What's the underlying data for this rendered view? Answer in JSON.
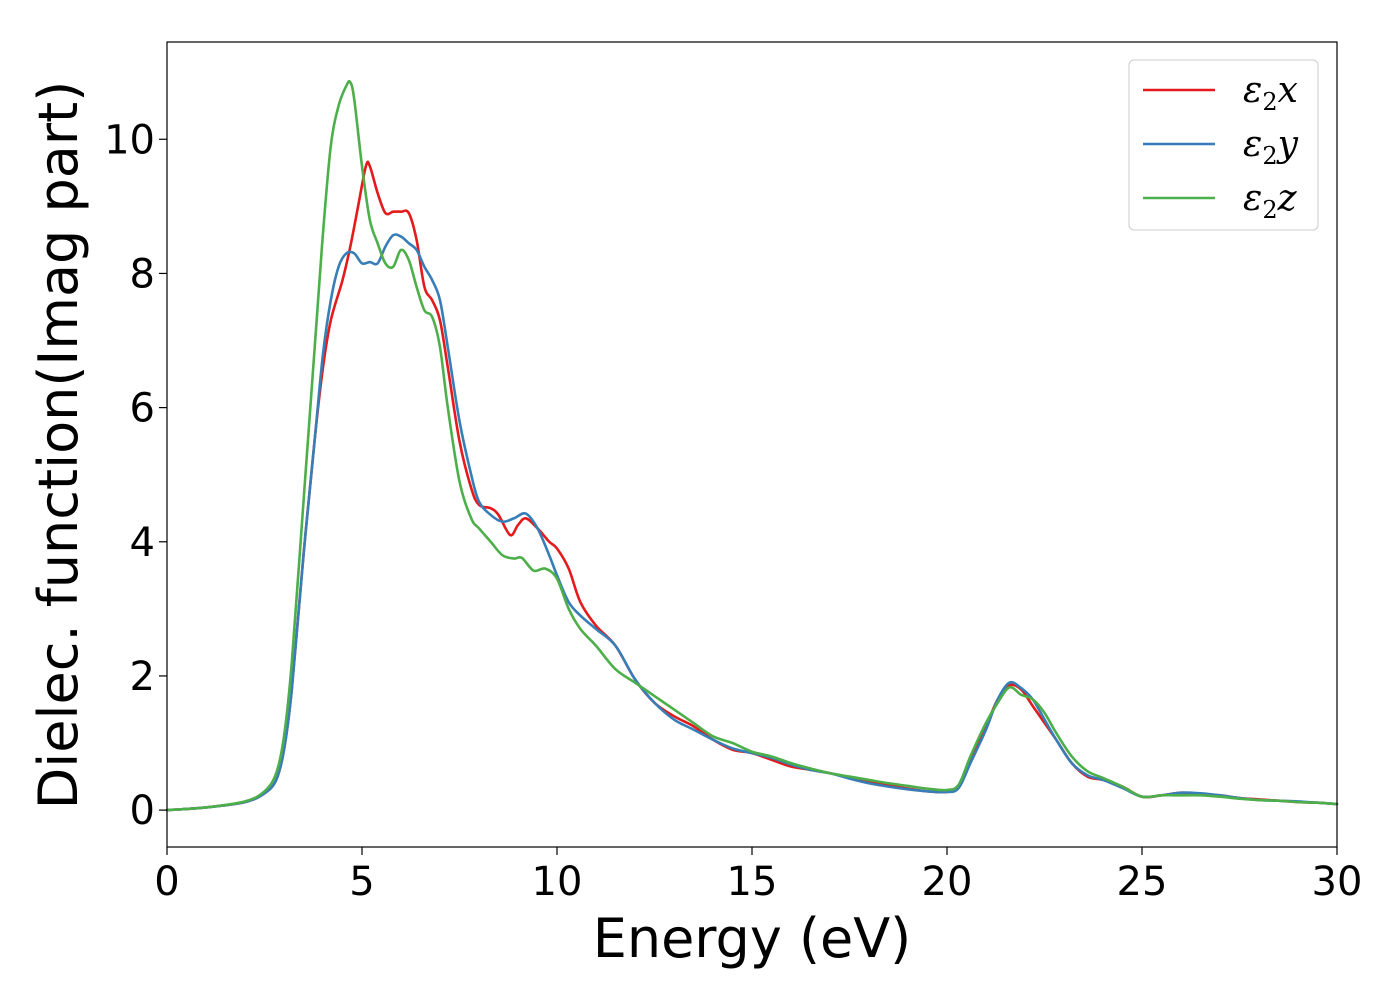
{
  "chart_data": {
    "type": "line",
    "title": "",
    "xlabel": "Energy (eV)",
    "ylabel": "Dielec. function(Imag part)",
    "xlim": [
      0,
      30
    ],
    "ylim": [
      -0.55,
      11.45
    ],
    "xticks": [
      0,
      5,
      10,
      15,
      20,
      25,
      30
    ],
    "yticks": [
      0,
      2,
      4,
      6,
      8,
      10
    ],
    "grid": false,
    "legend_position": "top-right",
    "series": [
      {
        "name": "ε2x",
        "legend_base": "ε",
        "legend_sub": "2",
        "legend_suffix": "x",
        "color": "#e41a1c",
        "points": [
          [
            0,
            0.0
          ],
          [
            1,
            0.04
          ],
          [
            2,
            0.12
          ],
          [
            2.5,
            0.25
          ],
          [
            2.8,
            0.45
          ],
          [
            3.0,
            0.9
          ],
          [
            3.2,
            1.8
          ],
          [
            3.5,
            3.8
          ],
          [
            3.8,
            5.6
          ],
          [
            4.0,
            6.6
          ],
          [
            4.2,
            7.3
          ],
          [
            4.5,
            7.9
          ],
          [
            4.7,
            8.4
          ],
          [
            4.9,
            9.0
          ],
          [
            5.1,
            9.6
          ],
          [
            5.2,
            9.6
          ],
          [
            5.4,
            9.2
          ],
          [
            5.6,
            8.9
          ],
          [
            5.8,
            8.92
          ],
          [
            6.0,
            8.92
          ],
          [
            6.2,
            8.9
          ],
          [
            6.4,
            8.5
          ],
          [
            6.6,
            7.8
          ],
          [
            6.8,
            7.6
          ],
          [
            7.0,
            7.3
          ],
          [
            7.2,
            6.6
          ],
          [
            7.5,
            5.5
          ],
          [
            7.8,
            4.8
          ],
          [
            8.0,
            4.55
          ],
          [
            8.3,
            4.5
          ],
          [
            8.5,
            4.4
          ],
          [
            8.8,
            4.1
          ],
          [
            9.0,
            4.25
          ],
          [
            9.2,
            4.35
          ],
          [
            9.5,
            4.2
          ],
          [
            9.8,
            4.0
          ],
          [
            10.0,
            3.9
          ],
          [
            10.3,
            3.6
          ],
          [
            10.6,
            3.1
          ],
          [
            11.0,
            2.75
          ],
          [
            11.5,
            2.45
          ],
          [
            12.0,
            1.95
          ],
          [
            12.5,
            1.6
          ],
          [
            13.0,
            1.4
          ],
          [
            13.5,
            1.25
          ],
          [
            14.0,
            1.05
          ],
          [
            14.5,
            0.9
          ],
          [
            15.0,
            0.85
          ],
          [
            15.5,
            0.75
          ],
          [
            16.0,
            0.65
          ],
          [
            16.5,
            0.6
          ],
          [
            17.0,
            0.55
          ],
          [
            17.5,
            0.48
          ],
          [
            18.0,
            0.42
          ],
          [
            18.5,
            0.37
          ],
          [
            19.0,
            0.32
          ],
          [
            19.5,
            0.28
          ],
          [
            20.0,
            0.27
          ],
          [
            20.3,
            0.35
          ],
          [
            20.6,
            0.75
          ],
          [
            21.0,
            1.25
          ],
          [
            21.3,
            1.65
          ],
          [
            21.6,
            1.86
          ],
          [
            21.9,
            1.8
          ],
          [
            22.2,
            1.55
          ],
          [
            22.5,
            1.3
          ],
          [
            22.8,
            1.05
          ],
          [
            23.2,
            0.7
          ],
          [
            23.6,
            0.5
          ],
          [
            24.0,
            0.45
          ],
          [
            24.5,
            0.35
          ],
          [
            25.0,
            0.2
          ],
          [
            25.5,
            0.22
          ],
          [
            26.0,
            0.26
          ],
          [
            26.5,
            0.24
          ],
          [
            27.0,
            0.22
          ],
          [
            27.5,
            0.18
          ],
          [
            28.0,
            0.16
          ],
          [
            28.5,
            0.14
          ],
          [
            29.0,
            0.12
          ],
          [
            29.5,
            0.11
          ],
          [
            30.0,
            0.09
          ]
        ]
      },
      {
        "name": "ε2y",
        "legend_base": "ε",
        "legend_sub": "2",
        "legend_suffix": "y",
        "color": "#377eb8",
        "points": [
          [
            0,
            0.0
          ],
          [
            1,
            0.04
          ],
          [
            2,
            0.12
          ],
          [
            2.5,
            0.25
          ],
          [
            2.8,
            0.45
          ],
          [
            3.0,
            0.9
          ],
          [
            3.2,
            1.8
          ],
          [
            3.5,
            3.8
          ],
          [
            3.8,
            5.6
          ],
          [
            4.0,
            6.8
          ],
          [
            4.2,
            7.6
          ],
          [
            4.4,
            8.1
          ],
          [
            4.6,
            8.3
          ],
          [
            4.8,
            8.3
          ],
          [
            5.0,
            8.15
          ],
          [
            5.2,
            8.17
          ],
          [
            5.4,
            8.15
          ],
          [
            5.6,
            8.4
          ],
          [
            5.8,
            8.57
          ],
          [
            6.0,
            8.55
          ],
          [
            6.2,
            8.45
          ],
          [
            6.4,
            8.35
          ],
          [
            6.6,
            8.1
          ],
          [
            6.8,
            7.9
          ],
          [
            7.0,
            7.6
          ],
          [
            7.2,
            6.9
          ],
          [
            7.5,
            5.8
          ],
          [
            7.8,
            5.0
          ],
          [
            8.0,
            4.6
          ],
          [
            8.3,
            4.4
          ],
          [
            8.6,
            4.3
          ],
          [
            8.9,
            4.35
          ],
          [
            9.2,
            4.42
          ],
          [
            9.5,
            4.2
          ],
          [
            9.8,
            3.8
          ],
          [
            10.0,
            3.5
          ],
          [
            10.3,
            3.1
          ],
          [
            10.6,
            2.9
          ],
          [
            11.0,
            2.7
          ],
          [
            11.5,
            2.45
          ],
          [
            12.0,
            1.95
          ],
          [
            12.5,
            1.6
          ],
          [
            13.0,
            1.35
          ],
          [
            13.5,
            1.2
          ],
          [
            14.0,
            1.05
          ],
          [
            14.5,
            0.92
          ],
          [
            15.0,
            0.85
          ],
          [
            15.5,
            0.78
          ],
          [
            16.0,
            0.68
          ],
          [
            16.5,
            0.6
          ],
          [
            17.0,
            0.55
          ],
          [
            17.5,
            0.47
          ],
          [
            18.0,
            0.4
          ],
          [
            18.5,
            0.35
          ],
          [
            19.0,
            0.31
          ],
          [
            19.5,
            0.28
          ],
          [
            20.0,
            0.27
          ],
          [
            20.3,
            0.33
          ],
          [
            20.6,
            0.7
          ],
          [
            21.0,
            1.2
          ],
          [
            21.3,
            1.65
          ],
          [
            21.6,
            1.9
          ],
          [
            21.9,
            1.82
          ],
          [
            22.2,
            1.65
          ],
          [
            22.5,
            1.35
          ],
          [
            22.8,
            1.05
          ],
          [
            23.2,
            0.7
          ],
          [
            23.6,
            0.52
          ],
          [
            24.0,
            0.45
          ],
          [
            24.5,
            0.33
          ],
          [
            25.0,
            0.2
          ],
          [
            25.5,
            0.22
          ],
          [
            26.0,
            0.26
          ],
          [
            26.5,
            0.25
          ],
          [
            27.0,
            0.22
          ],
          [
            27.5,
            0.18
          ],
          [
            28.0,
            0.15
          ],
          [
            28.5,
            0.14
          ],
          [
            29.0,
            0.13
          ],
          [
            29.5,
            0.11
          ],
          [
            30.0,
            0.09
          ]
        ]
      },
      {
        "name": "ε2z",
        "legend_base": "ε",
        "legend_sub": "2",
        "legend_suffix": "z",
        "color": "#4daf4a",
        "points": [
          [
            0,
            0.0
          ],
          [
            1,
            0.04
          ],
          [
            2,
            0.13
          ],
          [
            2.5,
            0.28
          ],
          [
            2.8,
            0.55
          ],
          [
            3.0,
            1.1
          ],
          [
            3.2,
            2.2
          ],
          [
            3.5,
            4.6
          ],
          [
            3.8,
            7.0
          ],
          [
            4.0,
            8.6
          ],
          [
            4.2,
            9.9
          ],
          [
            4.4,
            10.5
          ],
          [
            4.6,
            10.8
          ],
          [
            4.7,
            10.85
          ],
          [
            4.8,
            10.6
          ],
          [
            5.0,
            9.6
          ],
          [
            5.2,
            8.8
          ],
          [
            5.4,
            8.45
          ],
          [
            5.6,
            8.15
          ],
          [
            5.8,
            8.1
          ],
          [
            6.0,
            8.35
          ],
          [
            6.2,
            8.2
          ],
          [
            6.4,
            7.8
          ],
          [
            6.6,
            7.45
          ],
          [
            6.8,
            7.35
          ],
          [
            7.0,
            6.9
          ],
          [
            7.2,
            6.0
          ],
          [
            7.5,
            4.9
          ],
          [
            7.8,
            4.35
          ],
          [
            8.0,
            4.2
          ],
          [
            8.3,
            4.0
          ],
          [
            8.6,
            3.8
          ],
          [
            8.9,
            3.75
          ],
          [
            9.1,
            3.76
          ],
          [
            9.4,
            3.57
          ],
          [
            9.7,
            3.6
          ],
          [
            10.0,
            3.45
          ],
          [
            10.3,
            3.0
          ],
          [
            10.6,
            2.7
          ],
          [
            11.0,
            2.45
          ],
          [
            11.5,
            2.1
          ],
          [
            12.0,
            1.9
          ],
          [
            12.5,
            1.7
          ],
          [
            13.0,
            1.5
          ],
          [
            13.5,
            1.3
          ],
          [
            14.0,
            1.1
          ],
          [
            14.5,
            1.0
          ],
          [
            15.0,
            0.87
          ],
          [
            15.5,
            0.8
          ],
          [
            16.0,
            0.7
          ],
          [
            16.5,
            0.62
          ],
          [
            17.0,
            0.55
          ],
          [
            17.5,
            0.5
          ],
          [
            18.0,
            0.45
          ],
          [
            18.5,
            0.4
          ],
          [
            19.0,
            0.36
          ],
          [
            19.5,
            0.32
          ],
          [
            20.0,
            0.3
          ],
          [
            20.3,
            0.38
          ],
          [
            20.6,
            0.8
          ],
          [
            21.0,
            1.3
          ],
          [
            21.3,
            1.6
          ],
          [
            21.6,
            1.83
          ],
          [
            21.9,
            1.72
          ],
          [
            22.2,
            1.65
          ],
          [
            22.5,
            1.45
          ],
          [
            22.8,
            1.15
          ],
          [
            23.2,
            0.8
          ],
          [
            23.6,
            0.58
          ],
          [
            24.0,
            0.48
          ],
          [
            24.5,
            0.35
          ],
          [
            25.0,
            0.2
          ],
          [
            25.5,
            0.22
          ],
          [
            26.0,
            0.22
          ],
          [
            26.5,
            0.22
          ],
          [
            27.0,
            0.2
          ],
          [
            27.5,
            0.17
          ],
          [
            28.0,
            0.15
          ],
          [
            28.5,
            0.14
          ],
          [
            29.0,
            0.12
          ],
          [
            29.5,
            0.11
          ],
          [
            30.0,
            0.09
          ]
        ]
      }
    ]
  }
}
